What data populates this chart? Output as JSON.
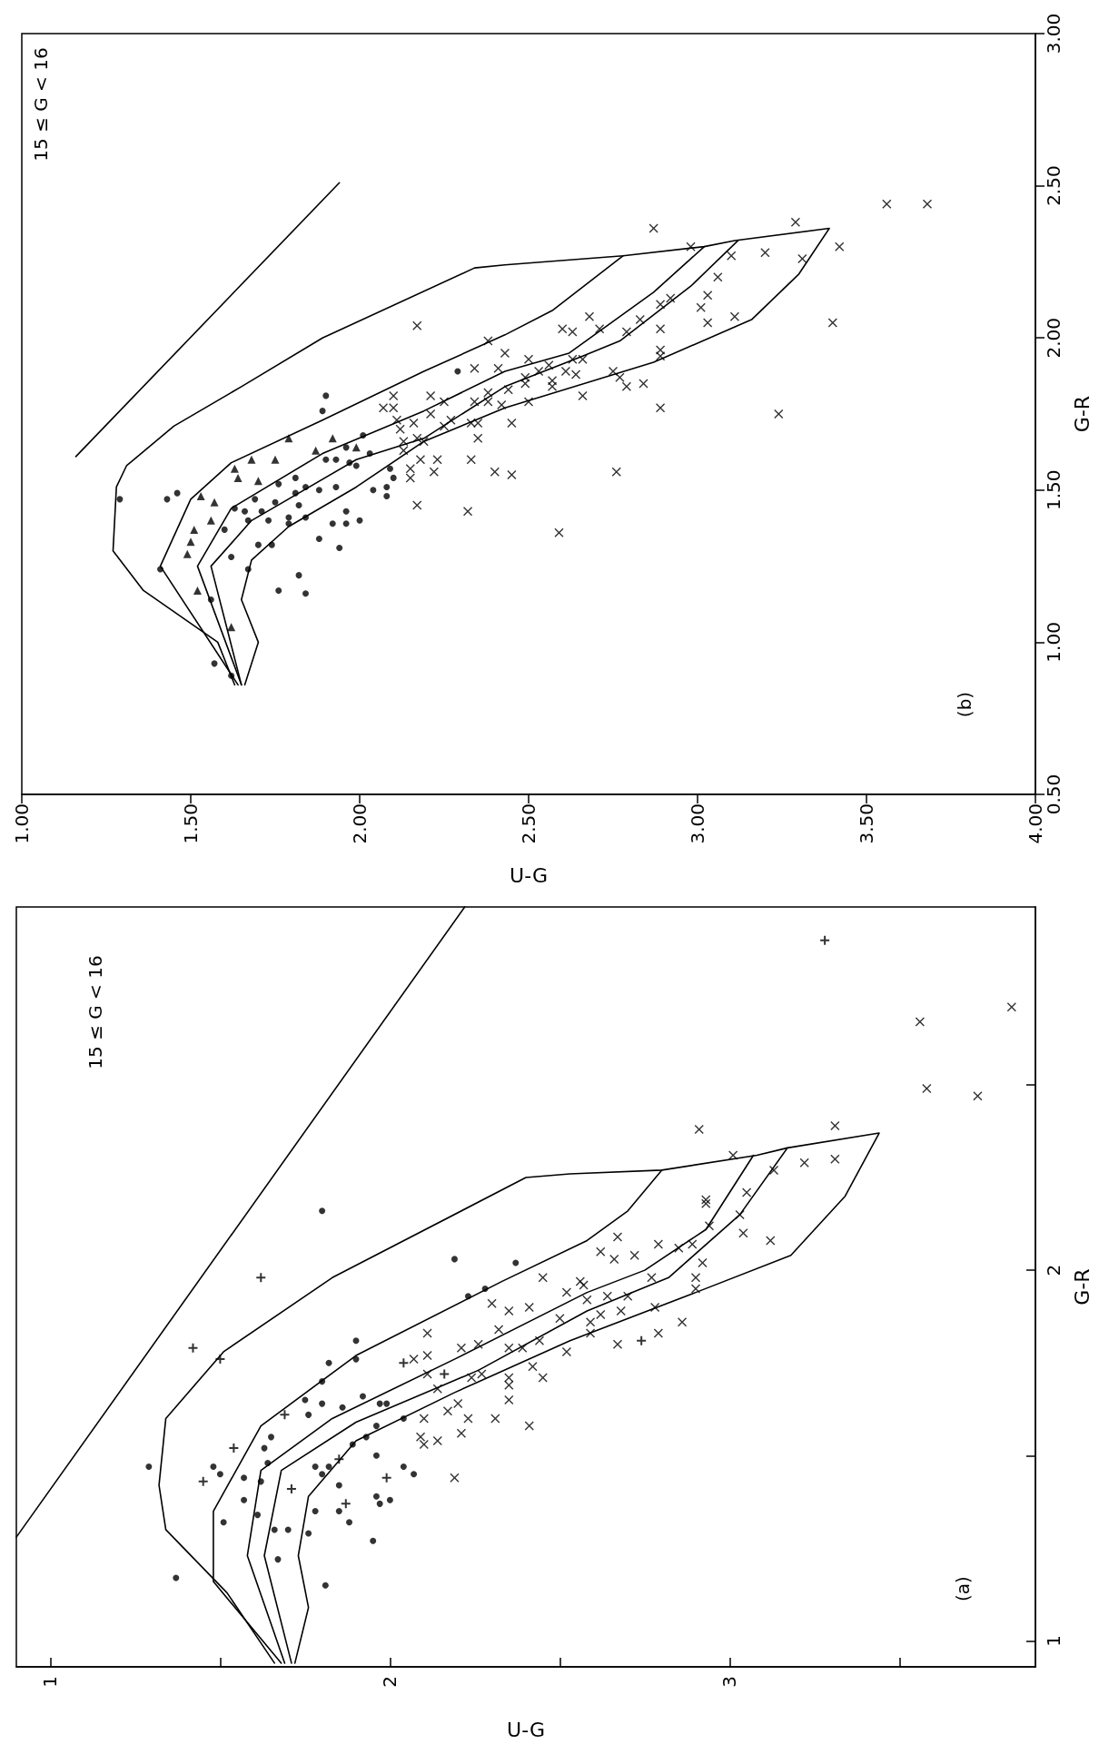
{
  "chart_data": [
    {
      "type": "scatter",
      "xlabel": "U-G",
      "ylabel": "G-R",
      "annotations": [
        "15 ≤ G < 16",
        "(a)"
      ],
      "xlim": [
        0.9,
        3.9
      ],
      "ylim": [
        0.93,
        2.98
      ],
      "xticks": [
        1,
        {
          "value": 1.5,
          "label": null
        },
        2,
        {
          "value": 2.5,
          "label": null
        },
        3,
        {
          "value": 3.5,
          "label": null
        }
      ],
      "yticks": [
        1,
        {
          "value": 1.5,
          "label": null
        },
        2,
        {
          "value": 2.5,
          "label": null
        }
      ],
      "series": [
        {
          "type": "line",
          "marker": "none",
          "line_style": "solid",
          "color": "#000000",
          "values": [
            1.28,
            2.98
          ],
          "x": [
            0.9,
            2.22
          ]
        },
        {
          "type": "line",
          "marker": "none",
          "line_style": "solid",
          "color": "#000000",
          "values": [
            0.94,
            1.13,
            1.3,
            1.42,
            1.6,
            1.78,
            1.98,
            2.25,
            2.26,
            2.27,
            2.31,
            2.33,
            2.37,
            2.2,
            2.04,
            1.94,
            1.81,
            1.67,
            1.54,
            1.39,
            1.23,
            1.09,
            0.94
          ],
          "x": [
            1.66,
            1.52,
            1.34,
            1.32,
            1.34,
            1.51,
            1.83,
            2.4,
            2.53,
            2.8,
            3.08,
            3.17,
            3.44,
            3.34,
            3.18,
            2.9,
            2.53,
            2.19,
            1.9,
            1.76,
            1.73,
            1.76,
            1.72
          ]
        },
        {
          "type": "line",
          "marker": "none",
          "line_style": "solid",
          "color": "#000000",
          "values": [
            0.94,
            1.16,
            1.35,
            1.58,
            1.77,
            1.97,
            2.08,
            2.16,
            2.27
          ],
          "x": [
            1.68,
            1.48,
            1.48,
            1.62,
            1.9,
            2.33,
            2.58,
            2.7,
            2.8
          ]
        },
        {
          "type": "line",
          "marker": "none",
          "line_style": "solid",
          "color": "#000000",
          "values": [
            0.94,
            1.23,
            1.46,
            1.6,
            1.76,
            1.94,
            2.0,
            2.11,
            2.31
          ],
          "x": [
            1.69,
            1.58,
            1.62,
            1.83,
            2.19,
            2.58,
            2.75,
            2.93,
            3.07
          ]
        },
        {
          "type": "line",
          "marker": "none",
          "line_style": "solid",
          "color": "#000000",
          "values": [
            0.94,
            1.23,
            1.46,
            1.59,
            1.73,
            1.89,
            1.98,
            2.15,
            2.33
          ],
          "x": [
            1.71,
            1.63,
            1.68,
            1.9,
            2.26,
            2.58,
            2.82,
            3.03,
            3.17
          ]
        },
        {
          "marker": "circle",
          "color": "#000000",
          "values": [
            1.47,
            1.17,
            1.47,
            1.45,
            1.32,
            1.44,
            1.43,
            1.38,
            1.34,
            1.48,
            1.55,
            1.52,
            1.3,
            1.22,
            1.3,
            1.29,
            1.35,
            1.15,
            1.42,
            1.35,
            1.32,
            1.27,
            1.39,
            1.37,
            1.38,
            1.47,
            1.45,
            1.45,
            1.47,
            1.7,
            1.75,
            1.81,
            1.76,
            1.64,
            1.63,
            1.66,
            1.64,
            1.64,
            1.6,
            1.58,
            1.55,
            1.53,
            1.5,
            1.61,
            1.65,
            1.47,
            2.03,
            2.02,
            1.95,
            1.93,
            2.16
          ],
          "x": [
            1.29,
            1.37,
            1.48,
            1.5,
            1.51,
            1.57,
            1.62,
            1.57,
            1.61,
            1.64,
            1.65,
            1.63,
            1.66,
            1.67,
            1.7,
            1.76,
            1.78,
            1.81,
            1.85,
            1.85,
            1.88,
            1.95,
            1.96,
            1.97,
            2.0,
            2.04,
            2.07,
            1.8,
            1.82,
            1.8,
            1.82,
            1.9,
            1.9,
            1.8,
            1.86,
            1.92,
            1.97,
            1.99,
            2.04,
            1.96,
            1.93,
            1.89,
            1.96,
            1.76,
            1.75,
            1.78,
            2.19,
            2.37,
            2.28,
            2.23,
            1.8
          ]
        },
        {
          "marker": "plus",
          "color": "#000000",
          "values": [
            1.98,
            1.79,
            1.76,
            1.52,
            1.43,
            1.61,
            1.37,
            1.44,
            1.75,
            1.49,
            1.72,
            1.41,
            2.89,
            1.81
          ],
          "x": [
            1.62,
            1.42,
            1.5,
            1.54,
            1.45,
            1.69,
            1.87,
            1.99,
            2.04,
            1.85,
            2.16,
            1.71,
            3.28,
            2.74
          ]
        },
        {
          "marker": "cross",
          "color": "#000000",
          "values": [
            1.98,
            1.94,
            1.96,
            1.91,
            1.9,
            1.89,
            1.83,
            1.76,
            1.77,
            1.72,
            1.79,
            1.8,
            1.68,
            1.71,
            1.72,
            1.84,
            1.79,
            1.79,
            1.81,
            1.78,
            1.74,
            1.71,
            1.71,
            1.65,
            1.69,
            1.6,
            1.62,
            1.64,
            1.6,
            1.6,
            1.58,
            1.55,
            1.53,
            1.54,
            1.56,
            1.44,
            1.87,
            2.67,
            2.71,
            2.49,
            2.47,
            2.38,
            2.39,
            2.3,
            2.29,
            2.31,
            2.27,
            2.21,
            2.19,
            2.18,
            2.12,
            2.15,
            2.1,
            2.08,
            2.09,
            2.05,
            2.03,
            2.04,
            2.07,
            2.06,
            2.07,
            2.02,
            1.98,
            1.95,
            1.98,
            1.93,
            1.93,
            1.92,
            1.97,
            1.89,
            1.88,
            1.86,
            1.83,
            1.9,
            1.86,
            1.83,
            1.8
          ],
          "x": [
            2.45,
            2.52,
            2.57,
            2.3,
            2.41,
            2.35,
            2.11,
            2.07,
            2.11,
            2.11,
            2.21,
            2.26,
            2.14,
            2.24,
            2.27,
            2.32,
            2.35,
            2.39,
            2.44,
            2.52,
            2.42,
            2.45,
            2.35,
            2.35,
            2.35,
            2.1,
            2.17,
            2.2,
            2.23,
            2.31,
            2.41,
            2.09,
            2.1,
            2.14,
            2.21,
            2.19,
            2.5,
            3.56,
            3.83,
            3.58,
            3.73,
            2.91,
            3.31,
            3.31,
            3.22,
            3.01,
            3.13,
            3.05,
            2.93,
            2.93,
            2.94,
            3.03,
            3.04,
            3.12,
            2.67,
            2.62,
            2.66,
            2.72,
            2.79,
            2.85,
            2.89,
            2.92,
            2.9,
            2.9,
            2.77,
            2.7,
            2.64,
            2.58,
            2.56,
            2.68,
            2.62,
            2.59,
            2.59,
            2.78,
            2.86,
            2.79,
            2.67
          ]
        }
      ]
    },
    {
      "type": "scatter",
      "xlabel": "U-G",
      "ylabel": "G-R",
      "annotations": [
        "15 ≤ G < 16",
        "(b)"
      ],
      "xlim": [
        1.0,
        4.0
      ],
      "ylim": [
        0.5,
        3.0
      ],
      "xticks": [
        {
          "value": 1.0,
          "label": "1.00"
        },
        {
          "value": 1.5,
          "label": "1.50"
        },
        {
          "value": 2.0,
          "label": "2.00"
        },
        {
          "value": 2.5,
          "label": "2.50"
        },
        {
          "value": 3.0,
          "label": "3.00"
        },
        {
          "value": 3.5,
          "label": "3.50"
        },
        {
          "value": 4.0,
          "label": "4.00"
        }
      ],
      "yticks": [
        {
          "value": 0.5,
          "label": "0.50"
        },
        {
          "value": 1.0,
          "label": "1.00"
        },
        {
          "value": 1.5,
          "label": "1.50"
        },
        {
          "value": 2.0,
          "label": "2.00"
        },
        {
          "value": 2.5,
          "label": "2.50"
        },
        {
          "value": 3.0,
          "label": "3.00"
        }
      ],
      "series": [
        {
          "type": "line",
          "marker": "none",
          "line_style": "solid",
          "color": "#000000",
          "values": [
            1.61,
            2.51
          ],
          "x": [
            1.16,
            1.94
          ]
        },
        {
          "type": "line",
          "marker": "none",
          "line_style": "solid",
          "color": "#000000",
          "values": [
            0.86,
            1.0,
            1.17,
            1.3,
            1.51,
            1.58,
            1.71,
            1.84,
            2.0,
            2.23,
            2.24,
            2.27,
            2.3,
            2.32,
            2.36,
            2.21,
            2.06,
            1.92,
            1.77,
            1.66,
            1.51,
            1.38,
            1.27,
            1.14,
            1.0,
            0.86
          ],
          "x": [
            1.63,
            1.58,
            1.36,
            1.27,
            1.28,
            1.31,
            1.45,
            1.65,
            1.89,
            2.34,
            2.43,
            2.78,
            3.02,
            3.11,
            3.39,
            3.3,
            3.16,
            2.87,
            2.43,
            2.19,
            1.99,
            1.79,
            1.68,
            1.65,
            1.7,
            1.66
          ]
        },
        {
          "type": "line",
          "marker": "none",
          "line_style": "solid",
          "color": "#000000",
          "values": [
            0.86,
            1.25,
            1.47,
            1.59,
            1.73,
            1.89,
            2.01,
            2.09,
            2.27
          ],
          "x": [
            1.64,
            1.41,
            1.5,
            1.62,
            1.89,
            2.19,
            2.43,
            2.57,
            2.78
          ]
        },
        {
          "type": "line",
          "marker": "none",
          "line_style": "solid",
          "color": "#000000",
          "values": [
            0.86,
            1.25,
            1.44,
            1.62,
            1.76,
            1.89,
            1.95,
            2.15,
            2.3
          ],
          "x": [
            1.65,
            1.52,
            1.62,
            1.89,
            2.19,
            2.43,
            2.62,
            2.87,
            3.02
          ]
        },
        {
          "type": "line",
          "marker": "none",
          "line_style": "solid",
          "color": "#000000",
          "values": [
            0.86,
            1.25,
            1.4,
            1.6,
            1.67,
            1.84,
            1.94,
            1.99,
            2.17,
            2.32
          ],
          "x": [
            1.65,
            1.56,
            1.68,
            1.99,
            2.19,
            2.43,
            2.66,
            2.77,
            2.98,
            3.12
          ]
        },
        {
          "marker": "circle",
          "color": "#000000",
          "values": [
            1.47,
            1.49,
            1.47,
            1.24,
            0.93,
            0.89,
            1.28,
            1.14,
            1.24,
            1.17,
            1.16,
            1.22,
            1.31,
            1.34,
            1.32,
            1.32,
            1.39,
            1.39,
            1.4,
            1.43,
            1.4,
            1.41,
            1.43,
            1.4,
            1.44,
            1.37,
            1.47,
            1.46,
            1.49,
            1.51,
            1.5,
            1.51,
            1.52,
            1.54,
            1.6,
            1.6,
            1.64,
            1.68,
            1.5,
            1.51,
            1.48,
            1.54,
            1.57,
            1.62,
            1.58,
            1.76,
            1.81,
            1.89,
            1.59,
            1.45,
            1.41,
            1.39,
            1.43
          ],
          "x": [
            1.43,
            1.46,
            1.29,
            1.41,
            1.57,
            1.62,
            1.62,
            1.56,
            1.67,
            1.76,
            1.84,
            1.82,
            1.94,
            1.88,
            1.74,
            1.7,
            1.92,
            1.96,
            2.0,
            1.96,
            1.73,
            1.79,
            1.71,
            1.67,
            1.63,
            1.6,
            1.69,
            1.75,
            1.81,
            1.84,
            1.88,
            1.93,
            1.76,
            1.81,
            1.93,
            1.9,
            1.96,
            2.01,
            2.04,
            2.08,
            2.08,
            2.1,
            2.09,
            2.03,
            1.99,
            1.89,
            1.9,
            2.29,
            1.97,
            1.82,
            1.84,
            1.79,
            1.66
          ]
        },
        {
          "marker": "triangle",
          "color": "#000000",
          "values": [
            1.67,
            1.6,
            1.6,
            1.57,
            1.54,
            1.53,
            1.48,
            1.46,
            1.4,
            1.37,
            1.33,
            1.29,
            1.17,
            1.05,
            1.67,
            1.63,
            1.64
          ],
          "x": [
            1.79,
            1.68,
            1.75,
            1.63,
            1.64,
            1.7,
            1.53,
            1.57,
            1.56,
            1.51,
            1.5,
            1.49,
            1.52,
            1.62,
            1.92,
            1.87,
            1.99
          ]
        },
        {
          "marker": "cross",
          "color": "#000000",
          "values": [
            2.04,
            1.99,
            1.95,
            1.9,
            1.9,
            1.81,
            1.81,
            1.79,
            1.77,
            1.77,
            1.82,
            1.83,
            1.79,
            1.79,
            1.78,
            1.73,
            1.72,
            1.75,
            1.73,
            1.71,
            1.72,
            1.72,
            1.72,
            1.7,
            1.67,
            1.66,
            1.67,
            1.66,
            1.63,
            1.6,
            1.6,
            1.6,
            1.57,
            1.54,
            1.56,
            1.56,
            1.55,
            1.45,
            1.43,
            2.36,
            2.38,
            2.44,
            2.44,
            2.3,
            2.3,
            2.27,
            2.28,
            2.26,
            2.2,
            2.14,
            2.1,
            2.05,
            2.07,
            2.05,
            2.11,
            2.13,
            2.06,
            2.07,
            2.03,
            2.02,
            2.03,
            2.02,
            2.03,
            1.96,
            1.94,
            1.93,
            1.93,
            1.93,
            1.91,
            1.89,
            1.88,
            1.89,
            1.87,
            1.86,
            1.84,
            1.85,
            1.89,
            1.87,
            1.84,
            1.85,
            1.81,
            1.79,
            1.77,
            1.75,
            1.56,
            1.36
          ],
          "x": [
            2.17,
            2.38,
            2.43,
            2.34,
            2.41,
            2.1,
            2.21,
            2.25,
            2.07,
            2.1,
            2.38,
            2.44,
            2.34,
            2.38,
            2.42,
            2.11,
            2.16,
            2.21,
            2.27,
            2.25,
            2.33,
            2.35,
            2.45,
            2.12,
            2.17,
            2.19,
            2.35,
            2.13,
            2.13,
            2.18,
            2.23,
            2.33,
            2.15,
            2.15,
            2.22,
            2.4,
            2.45,
            2.17,
            2.32,
            2.87,
            3.29,
            3.56,
            3.68,
            2.98,
            3.42,
            3.1,
            3.2,
            3.31,
            3.06,
            3.03,
            3.01,
            3.03,
            3.11,
            3.4,
            2.89,
            2.92,
            2.83,
            2.68,
            2.6,
            2.63,
            2.71,
            2.79,
            2.89,
            2.89,
            2.89,
            2.5,
            2.63,
            2.66,
            2.56,
            2.61,
            2.64,
            2.53,
            2.49,
            2.57,
            2.57,
            2.49,
            2.75,
            2.77,
            2.79,
            2.84,
            2.66,
            2.5,
            2.89,
            3.24,
            2.76,
            2.59
          ]
        }
      ]
    }
  ]
}
